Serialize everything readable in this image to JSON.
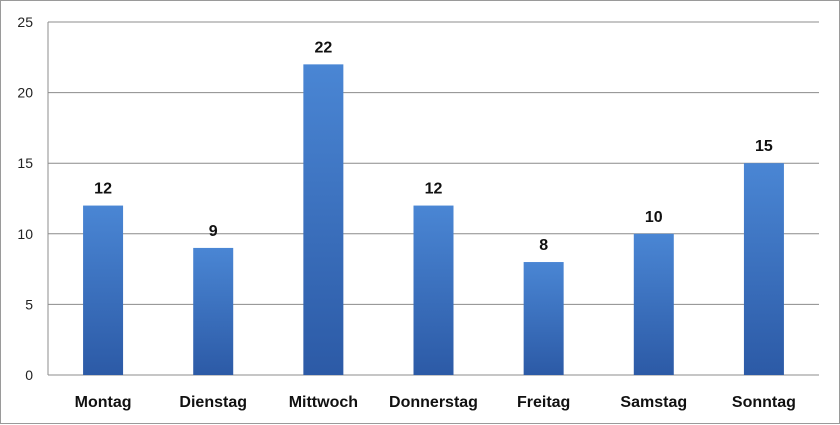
{
  "chart_data": {
    "type": "bar",
    "title": "",
    "xlabel": "",
    "ylabel": "",
    "categories": [
      "Montag",
      "Dienstag",
      "Mittwoch",
      "Donnerstag",
      "Freitag",
      "Samstag",
      "Sonntag"
    ],
    "values": [
      12,
      9,
      22,
      12,
      8,
      10,
      15
    ],
    "ylim": [
      0,
      25
    ],
    "yticks": [
      "0",
      "5",
      "10",
      "15",
      "20",
      "25"
    ],
    "grid": true,
    "legend": "none",
    "data_labels": true,
    "colors": {
      "bar_top": "#4a86d4",
      "bar_bottom": "#2c5aa6",
      "grid": "#8c8c8c"
    }
  }
}
